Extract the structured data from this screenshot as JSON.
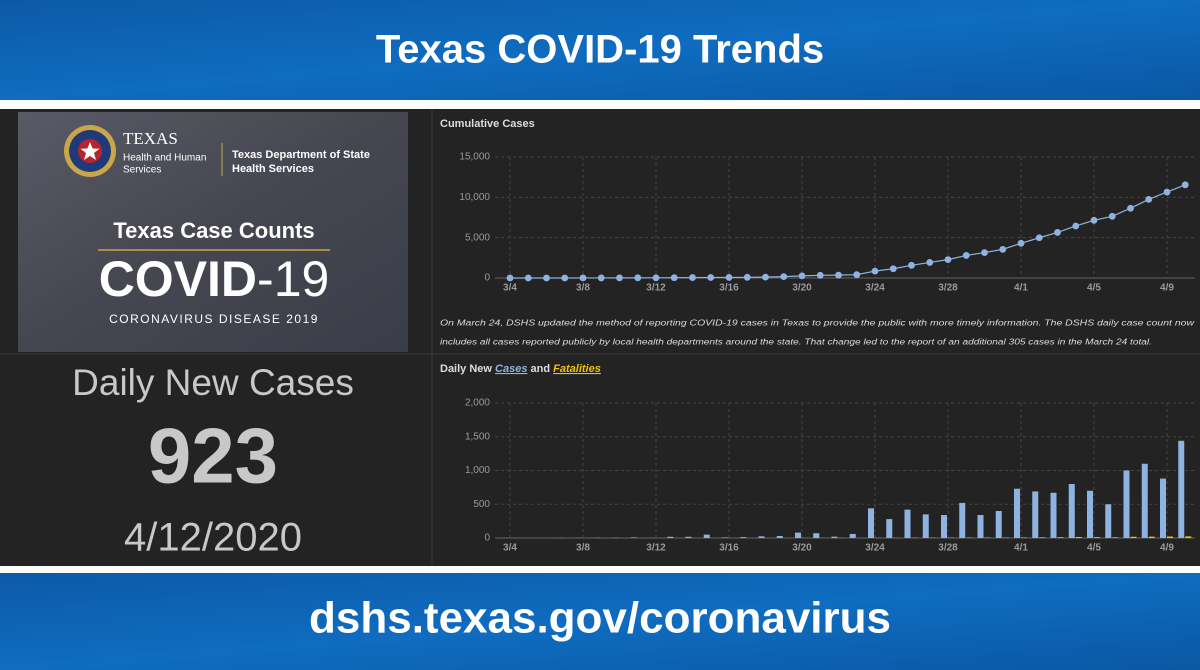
{
  "header": {
    "title": "Texas COVID-19 Trends"
  },
  "footer": {
    "url": "dshs.texas.gov/coronavirus"
  },
  "logo": {
    "texas": "TEXAS",
    "hhs_line1": "Health and Human",
    "hhs_line2": "Services",
    "dshs_line1": "Texas Department of State",
    "dshs_line2": "Health Services",
    "heading": "Texas Case Counts",
    "covid": "COVID",
    "covid_suffix": "-19",
    "subtitle": "CORONAVIRUS DISEASE 2019"
  },
  "stats": {
    "label": "Daily New Cases",
    "value": 923,
    "date": "4/12/2020"
  },
  "note": [
    "On March 24, DSHS updated the method of reporting COVID-19 cases in Texas to provide the public with more timely information. The DSHS daily case count now",
    "includes all cases reported publicly by local health departments around the state. That change led to the report of an additional 305 cases in the March 24 total."
  ],
  "chart_data": [
    {
      "type": "line",
      "title": "Cumulative Cases",
      "categories": [
        "3/4",
        null,
        null,
        null,
        "3/8",
        null,
        null,
        null,
        "3/12",
        null,
        null,
        null,
        "3/16",
        null,
        null,
        null,
        "3/20",
        null,
        null,
        null,
        "3/24",
        null,
        null,
        null,
        "3/28",
        null,
        null,
        null,
        "4/1",
        null,
        null,
        null,
        "4/5",
        null,
        null,
        null,
        "4/9",
        null
      ],
      "series": [
        {
          "name": "Cases",
          "color": "#8fb3e0",
          "values": [
            1,
            1,
            1,
            3,
            5,
            8,
            12,
            21,
            21,
            39,
            57,
            64,
            72,
            85,
            110,
            173,
            260,
            334,
            352,
            410,
            850,
            1150,
            1570,
            1930,
            2280,
            2800,
            3150,
            3550,
            4300,
            4990,
            5650,
            6450,
            7150,
            7650,
            8650,
            9750,
            10650,
            11550
          ]
        }
      ],
      "ylim": [
        0,
        15000
      ],
      "yticks": [
        0,
        {
          "value": 5000,
          "label": "5,000"
        },
        {
          "value": 10000,
          "label": "10,000"
        },
        {
          "value": 15000,
          "label": "15,000"
        }
      ],
      "grid": true
    },
    {
      "type": "bar",
      "title": "Daily New",
      "title_joiner": "and",
      "categories": [
        "3/4",
        null,
        null,
        null,
        "3/8",
        null,
        null,
        null,
        "3/12",
        null,
        null,
        null,
        "3/16",
        null,
        null,
        null,
        "3/20",
        null,
        null,
        null,
        "3/24",
        null,
        null,
        null,
        "3/28",
        null,
        null,
        null,
        "4/1",
        null,
        null,
        null,
        "4/5",
        null,
        null,
        null,
        "4/9",
        null
      ],
      "series": [
        {
          "name": "Cases",
          "color": "#8fb3e0",
          "values": [
            1,
            0,
            0,
            2,
            2,
            3,
            4,
            9,
            0,
            18,
            18,
            50,
            8,
            13,
            25,
            30,
            80,
            70,
            20,
            60,
            440,
            280,
            420,
            350,
            340,
            520,
            340,
            400,
            730,
            690,
            670,
            800,
            700,
            500,
            1000,
            1100,
            880,
            1440
          ]
        },
        {
          "name": "Fatalities",
          "color": "#f2c200",
          "values": [
            0,
            0,
            0,
            0,
            0,
            0,
            0,
            0,
            0,
            0,
            0,
            0,
            0,
            0,
            0,
            0,
            1,
            1,
            2,
            1,
            3,
            2,
            4,
            4,
            5,
            6,
            7,
            6,
            8,
            10,
            12,
            15,
            13,
            10,
            18,
            20,
            22,
            24
          ]
        }
      ],
      "ylim": [
        0,
        2000
      ],
      "yticks": [
        0,
        500,
        {
          "value": 1000,
          "label": "1,000"
        },
        {
          "value": 1500,
          "label": "1,500"
        },
        {
          "value": 2000,
          "label": "2,000"
        }
      ],
      "grid": true
    }
  ]
}
